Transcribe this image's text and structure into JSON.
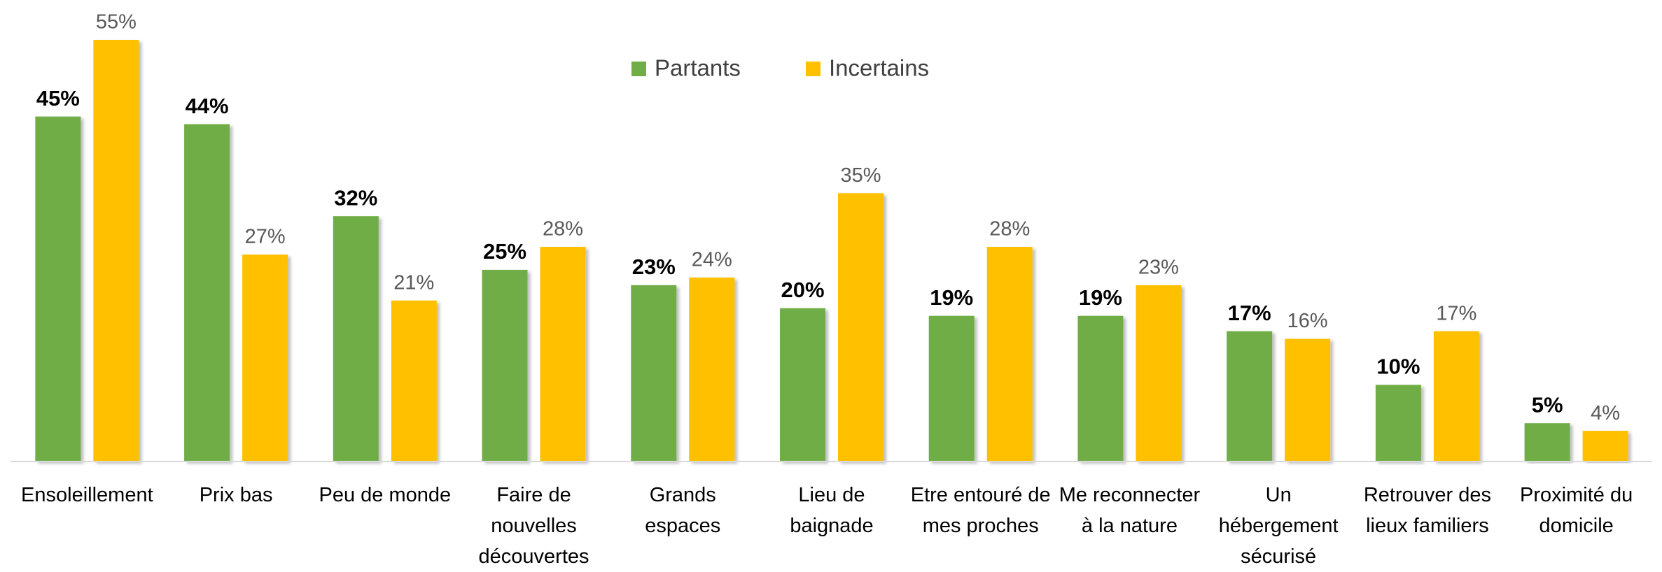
{
  "chart_data": {
    "type": "bar",
    "categories": [
      "Ensoleillement",
      "Prix bas",
      "Peu de monde",
      "Faire de nouvelles découvertes",
      "Grands espaces",
      "Lieu de baignade",
      "Etre entouré de mes proches",
      "Me reconnecter à la nature",
      "Un hébergement sécurisé",
      "Retrouver des lieux familiers",
      "Proximité du domicile"
    ],
    "series": [
      {
        "name": "Partants",
        "color": "#70ad47",
        "values": [
          45,
          44,
          32,
          25,
          23,
          20,
          19,
          19,
          17,
          10,
          5
        ],
        "value_labels": [
          "45%",
          "44%",
          "32%",
          "25%",
          "23%",
          "20%",
          "19%",
          "19%",
          "17%",
          "10%",
          "5%"
        ]
      },
      {
        "name": "Incertains",
        "color": "#ffc000",
        "values": [
          55,
          27,
          21,
          28,
          24,
          35,
          28,
          23,
          16,
          17,
          4
        ],
        "value_labels": [
          "55%",
          "27%",
          "21%",
          "28%",
          "24%",
          "35%",
          "28%",
          "23%",
          "16%",
          "17%",
          "4%"
        ]
      }
    ],
    "ylim": [
      0,
      55
    ]
  }
}
